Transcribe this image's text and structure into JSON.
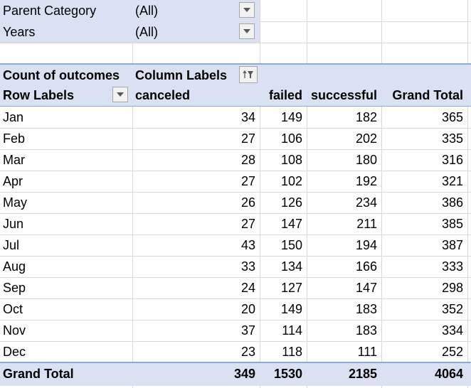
{
  "filters": [
    {
      "label": "Parent Category",
      "value": "(All)"
    },
    {
      "label": "Years",
      "value": "(All)"
    }
  ],
  "pivot": {
    "corner_label": "Count of outcomes",
    "column_labels": "Column Labels",
    "row_labels": "Row Labels",
    "columns": [
      "canceled",
      "failed",
      "successful",
      "Grand Total"
    ],
    "rows": [
      {
        "label": "Jan",
        "values": [
          "34",
          "149",
          "182",
          "365"
        ]
      },
      {
        "label": "Feb",
        "values": [
          "27",
          "106",
          "202",
          "335"
        ]
      },
      {
        "label": "Mar",
        "values": [
          "28",
          "108",
          "180",
          "316"
        ]
      },
      {
        "label": "Apr",
        "values": [
          "27",
          "102",
          "192",
          "321"
        ]
      },
      {
        "label": "May",
        "values": [
          "26",
          "126",
          "234",
          "386"
        ]
      },
      {
        "label": "Jun",
        "values": [
          "27",
          "147",
          "211",
          "385"
        ]
      },
      {
        "label": "Jul",
        "values": [
          "43",
          "150",
          "194",
          "387"
        ]
      },
      {
        "label": "Aug",
        "values": [
          "33",
          "134",
          "166",
          "333"
        ]
      },
      {
        "label": "Sep",
        "values": [
          "24",
          "127",
          "147",
          "298"
        ]
      },
      {
        "label": "Oct",
        "values": [
          "20",
          "149",
          "183",
          "352"
        ]
      },
      {
        "label": "Nov",
        "values": [
          "37",
          "114",
          "183",
          "334"
        ]
      },
      {
        "label": "Dec",
        "values": [
          "23",
          "118",
          "111",
          "252"
        ]
      }
    ],
    "grand_total": {
      "label": "Grand Total",
      "values": [
        "349",
        "1530",
        "2185",
        "4064"
      ]
    }
  },
  "colors": {
    "header_fill": "#d9e1f2",
    "header_border": "#8ea9db",
    "gridline": "#d9d9d9"
  },
  "icons": {
    "dropdown": "chevron-down-icon",
    "filter": "filter-sort-icon"
  }
}
